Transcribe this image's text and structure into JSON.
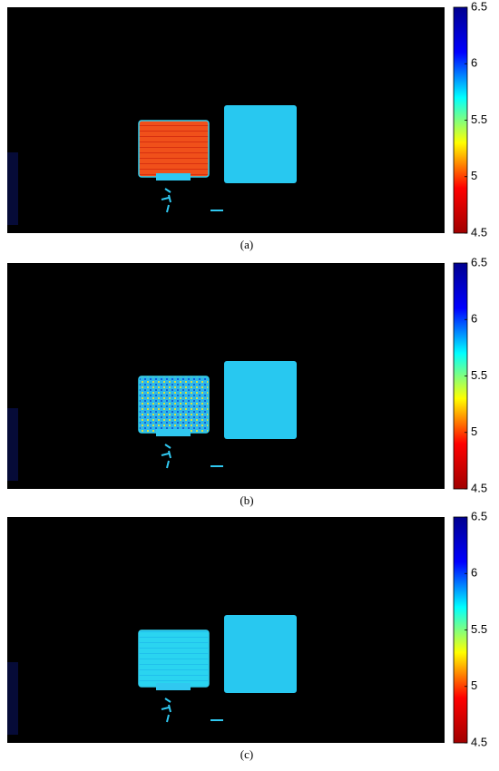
{
  "chart_data": [
    {
      "type": "heatmap",
      "caption": "(a)",
      "colormap": "jet_r",
      "clim": [
        4.5,
        6.5
      ],
      "cticks": [
        4.5,
        5,
        5.5,
        6,
        6.5
      ]
    },
    {
      "type": "heatmap",
      "caption": "(b)",
      "colormap": "jet_r",
      "clim": [
        4.5,
        6.5
      ],
      "cticks": [
        4.5,
        5,
        5.5,
        6,
        6.5
      ]
    },
    {
      "type": "heatmap",
      "caption": "(c)",
      "colormap": "jet_r",
      "clim": [
        4.5,
        6.5
      ],
      "cticks": [
        4.5,
        5,
        5.5,
        6,
        6.5
      ]
    }
  ]
}
